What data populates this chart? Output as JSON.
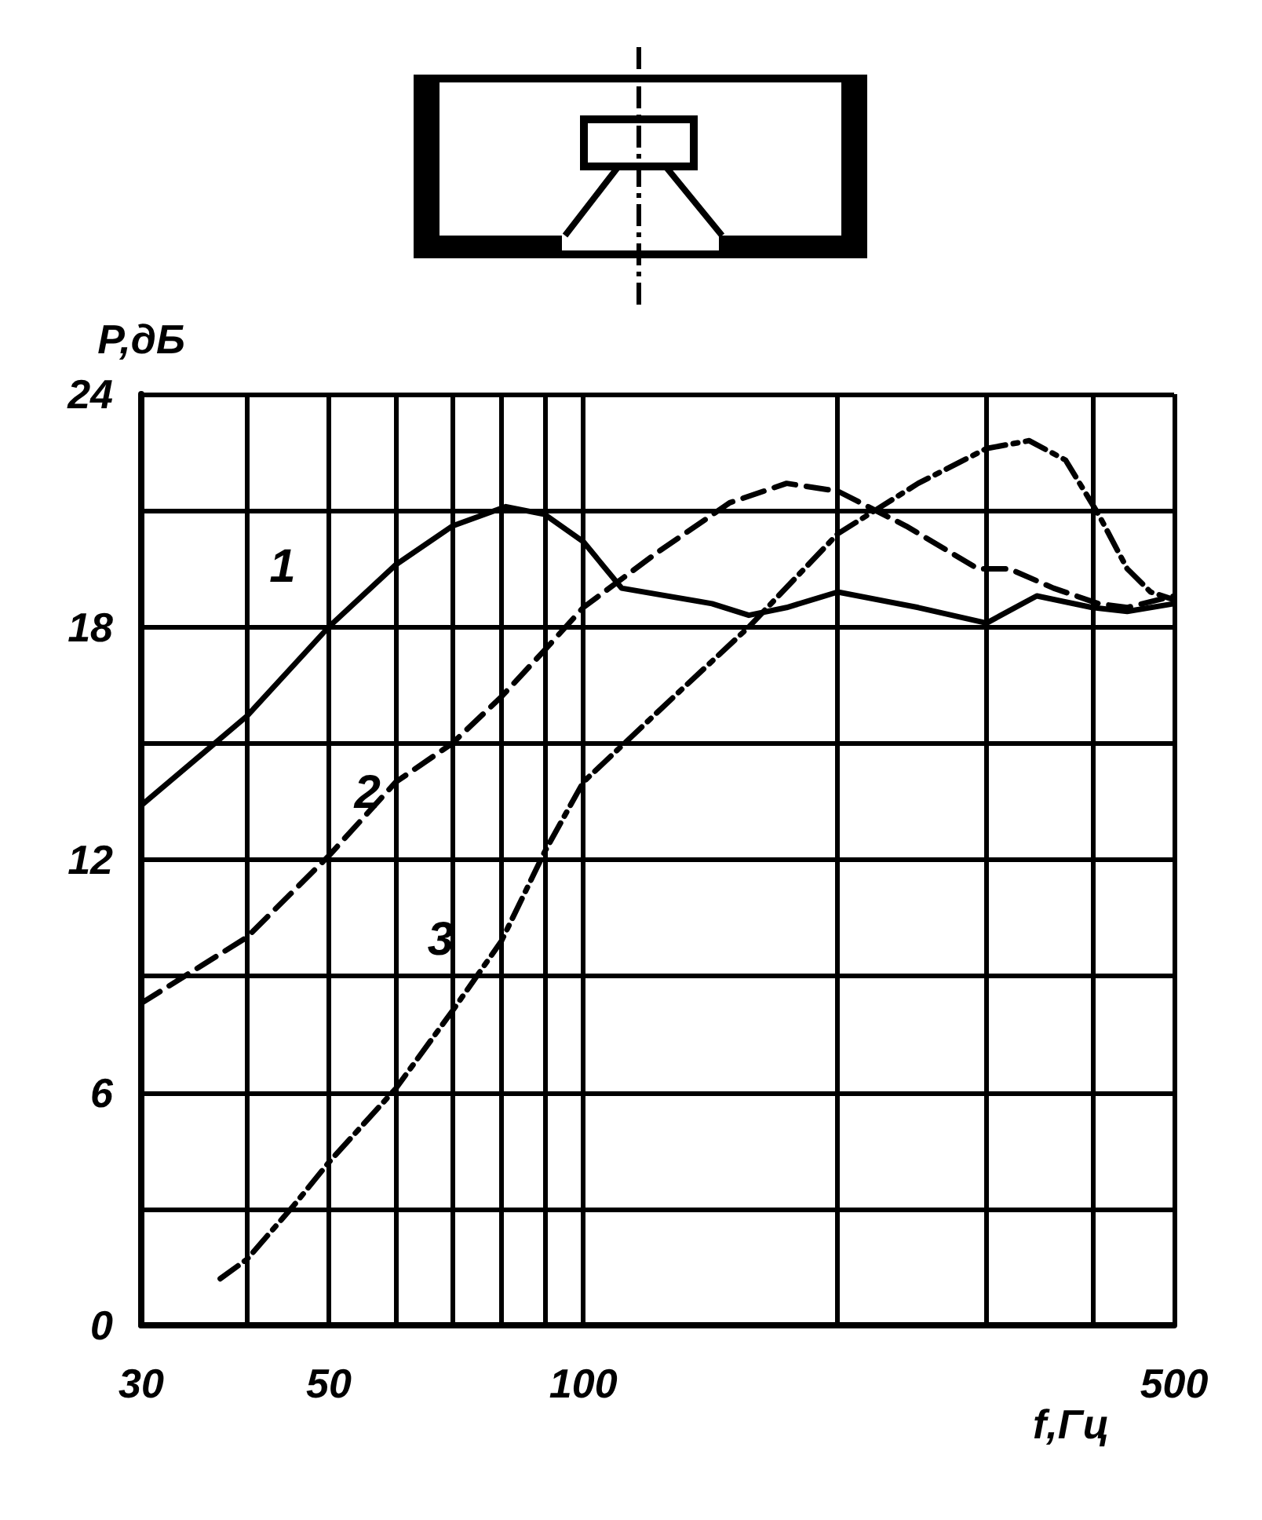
{
  "chart_data": {
    "type": "line",
    "xlabel": "f,Гц",
    "ylabel": "P,дБ",
    "log": "x",
    "grid": true,
    "legend": false,
    "marker": "none",
    "xlim": [
      30,
      500
    ],
    "xticks": [
      30,
      {
        "value": 40,
        "label": null
      },
      50,
      {
        "value": 60,
        "label": null
      },
      {
        "value": 70,
        "label": null
      },
      {
        "value": 80,
        "label": null
      },
      {
        "value": 90,
        "label": null
      },
      100,
      {
        "value": 200,
        "label": null
      },
      {
        "value": 300,
        "label": null
      },
      {
        "value": 400,
        "label": null
      },
      500
    ],
    "ylim": [
      0,
      24
    ],
    "yticks": [
      0,
      {
        "value": 3,
        "label": null
      },
      6,
      {
        "value": 9,
        "label": null
      },
      12,
      {
        "value": 15,
        "label": null
      },
      18,
      {
        "value": 21,
        "label": null
      },
      24
    ],
    "series": [
      {
        "name": "1",
        "color": "#000000",
        "line_style": "solid",
        "x": [
          30,
          40,
          50,
          60,
          70,
          81,
          90,
          100,
          111,
          142,
          157,
          174,
          200,
          249,
          300,
          344,
          400,
          440,
          500
        ],
        "values": [
          13.4,
          15.7,
          18.0,
          19.6,
          20.6,
          21.1,
          20.9,
          20.2,
          19.0,
          18.6,
          18.3,
          18.5,
          18.9,
          18.5,
          18.1,
          18.8,
          18.5,
          18.4,
          18.6
        ]
      },
      {
        "name": "2",
        "color": "#000000",
        "line_style": "dashed",
        "x": [
          30,
          40,
          50,
          60,
          70,
          80,
          90,
          100,
          122,
          149,
          174,
          200,
          241,
          293,
          319,
          360,
          407,
          440,
          500
        ],
        "values": [
          8.3,
          10.0,
          12.1,
          14.0,
          15.0,
          16.2,
          17.4,
          18.5,
          19.9,
          21.2,
          21.7,
          21.5,
          20.6,
          19.5,
          19.5,
          19.0,
          18.6,
          18.5,
          18.8
        ]
      },
      {
        "name": "3",
        "color": "#000000",
        "line_style": "dotted",
        "x": [
          37.2,
          40,
          45.5,
          50,
          60,
          70,
          80,
          90,
          100,
          128,
          157,
          200,
          249,
          300,
          337,
          372,
          407,
          440,
          469,
          500
        ],
        "values": [
          1.2,
          1.7,
          3.1,
          4.2,
          6.1,
          8.1,
          9.9,
          12.2,
          14.0,
          16.2,
          18.0,
          20.4,
          21.7,
          22.6,
          22.8,
          22.3,
          20.9,
          19.5,
          18.9,
          18.7
        ]
      }
    ]
  }
}
